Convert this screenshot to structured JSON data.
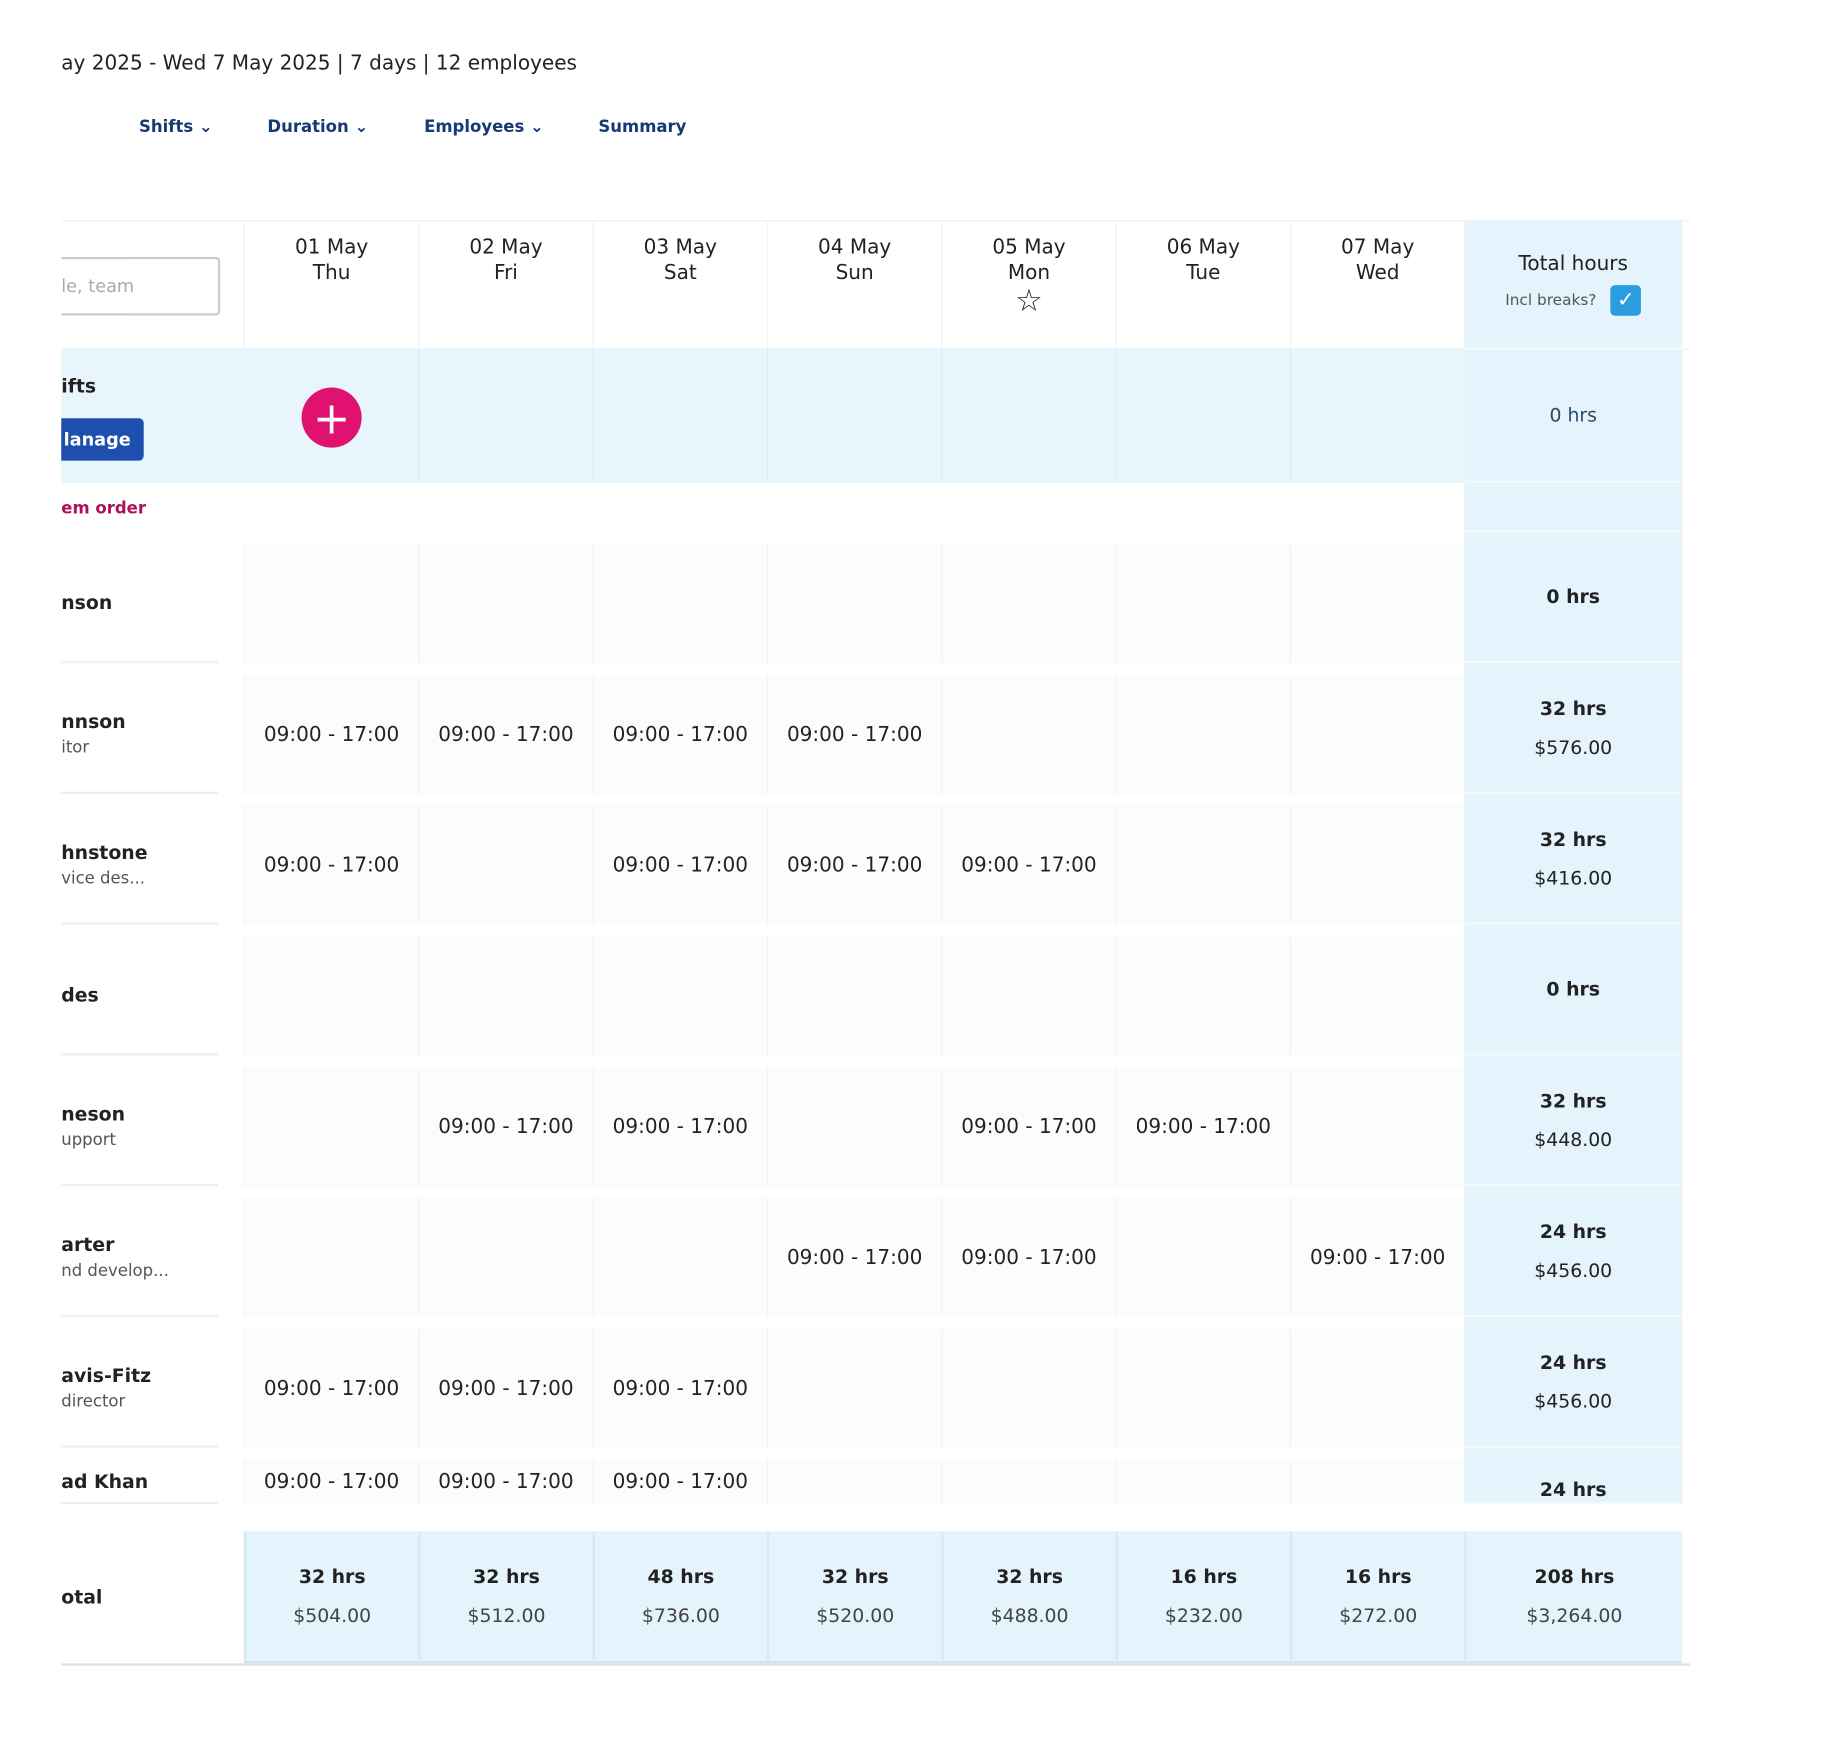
{
  "header": {
    "range_text": "ay 2025 - Wed 7 May 2025 | 7 days | 12 employees",
    "tabs": [
      "Shifts",
      "Duration",
      "Employees",
      "Summary"
    ]
  },
  "search_placeholder": "le, team",
  "days": [
    {
      "date": "01 May",
      "day": "Thu"
    },
    {
      "date": "02 May",
      "day": "Fri"
    },
    {
      "date": "03 May",
      "day": "Sat"
    },
    {
      "date": "04 May",
      "day": "Sun"
    },
    {
      "date": "05 May",
      "day": "Mon"
    },
    {
      "date": "06 May",
      "day": "Tue"
    },
    {
      "date": "07 May",
      "day": "Wed"
    }
  ],
  "total_header": {
    "title": "Total hours",
    "incl_breaks": "Incl breaks?"
  },
  "open_shifts": {
    "label": "ifts",
    "button": "lanage",
    "total": "0 hrs"
  },
  "sort_label": "em order",
  "employees": [
    {
      "name": "nson",
      "shifts": [
        null,
        null,
        null,
        null,
        null,
        null,
        null
      ],
      "hours": "0 hrs"
    },
    {
      "name": "nnson",
      "role": "itor",
      "shifts": [
        "09:00 - 17:00",
        "09:00 - 17:00",
        "09:00 - 17:00",
        "09:00 - 17:00",
        null,
        null,
        null
      ],
      "hours": "32 hrs",
      "cost": "$576.00"
    },
    {
      "name": "hnstone",
      "role": "vice des...",
      "shifts": [
        "09:00 - 17:00",
        null,
        "09:00 - 17:00",
        "09:00 - 17:00",
        "09:00 - 17:00",
        null,
        null
      ],
      "hours": "32 hrs",
      "cost": "$416.00"
    },
    {
      "name": "des",
      "shifts": [
        null,
        null,
        null,
        null,
        null,
        null,
        null
      ],
      "hours": "0 hrs"
    },
    {
      "name": "neson",
      "role": "upport",
      "shifts": [
        null,
        "09:00 - 17:00",
        "09:00 - 17:00",
        null,
        "09:00 - 17:00",
        "09:00 - 17:00",
        null
      ],
      "hours": "32 hrs",
      "cost": "$448.00"
    },
    {
      "name": "arter",
      "role": "nd develop...",
      "shifts": [
        null,
        null,
        null,
        "09:00 - 17:00",
        "09:00 - 17:00",
        null,
        "09:00 - 17:00"
      ],
      "hours": "24 hrs",
      "cost": "$456.00"
    },
    {
      "name": "avis-Fitz",
      "role": "director",
      "shifts": [
        "09:00 - 17:00",
        "09:00 - 17:00",
        "09:00 - 17:00",
        null,
        null,
        null,
        null
      ],
      "hours": "24 hrs",
      "cost": "$456.00"
    },
    {
      "name": "ad Khan",
      "shifts": [
        "09:00 - 17:00",
        "09:00 - 17:00",
        "09:00 - 17:00",
        null,
        null,
        null,
        null
      ],
      "hours": "24 hrs"
    }
  ],
  "totals": {
    "label": "otal",
    "days": [
      {
        "hours": "32 hrs",
        "cost": "$504.00"
      },
      {
        "hours": "32 hrs",
        "cost": "$512.00"
      },
      {
        "hours": "48 hrs",
        "cost": "$736.00"
      },
      {
        "hours": "32 hrs",
        "cost": "$520.00"
      },
      {
        "hours": "32 hrs",
        "cost": "$488.00"
      },
      {
        "hours": "16 hrs",
        "cost": "$232.00"
      },
      {
        "hours": "16 hrs",
        "cost": "$272.00"
      }
    ],
    "hours": "208 hrs",
    "cost": "$3,264.00"
  }
}
